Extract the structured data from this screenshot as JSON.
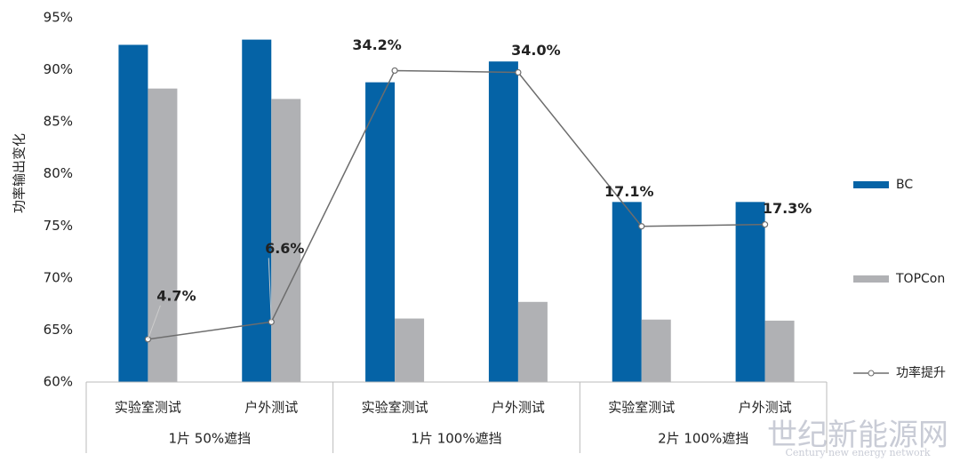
{
  "chart_data": {
    "type": "bar-line",
    "y_axis_label": "功率输出变化",
    "categories": [
      "实验室测试",
      "户外测试",
      "实验室测试",
      "户外测试",
      "实验室测试",
      "户外测试"
    ],
    "groups": [
      "1片 50%遮挡",
      "1片 100%遮挡",
      "2片 100%遮挡"
    ],
    "ylim": [
      60,
      95
    ],
    "yticks": [
      {
        "value": 60,
        "label": "60%"
      },
      {
        "value": 65,
        "label": "65%"
      },
      {
        "value": 70,
        "label": "70%"
      },
      {
        "value": 75,
        "label": "75%"
      },
      {
        "value": 80,
        "label": "80%"
      },
      {
        "value": 85,
        "label": "85%"
      },
      {
        "value": 90,
        "label": "90%"
      },
      {
        "value": 95,
        "label": "95%"
      }
    ],
    "y2lim": [
      0,
      40
    ],
    "series": [
      {
        "name": "BC",
        "color": "#0563a6",
        "values": [
          92.4,
          92.9,
          88.8,
          90.8,
          77.3,
          77.3
        ]
      },
      {
        "name": "TOPCon",
        "color": "#b0b1b4",
        "values": [
          88.2,
          87.2,
          66.1,
          67.7,
          66.0,
          65.9
        ]
      },
      {
        "name": "功率提升",
        "type": "line",
        "axis": "y2",
        "color": "#6d6d6d",
        "values": [
          4.7,
          6.6,
          34.2,
          34.0,
          17.1,
          17.3
        ],
        "value_labels": [
          "4.7%",
          "6.6%",
          "34.2%",
          "34.0%",
          "17.1%",
          "17.3%"
        ]
      }
    ],
    "watermark": [
      "世纪新能源网",
      "Century new energy network"
    ]
  }
}
